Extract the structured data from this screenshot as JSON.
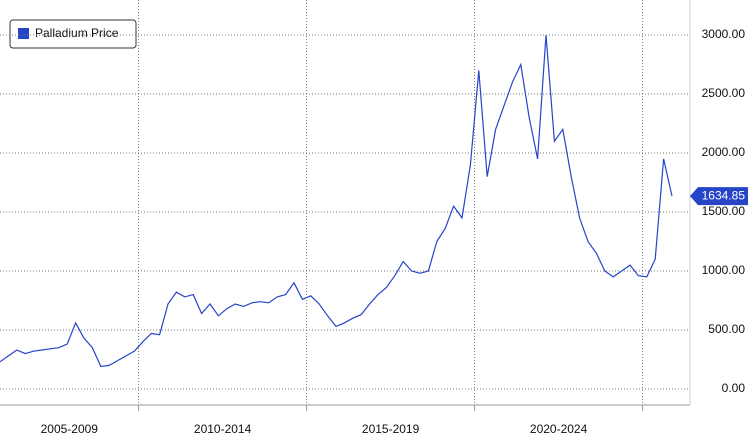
{
  "chart_data": {
    "type": "line",
    "categories": [
      null,
      null,
      null,
      null,
      null,
      null,
      "2005-2009",
      null,
      null,
      null,
      null,
      null,
      null,
      null,
      null,
      null,
      null,
      null,
      null,
      null,
      null,
      null,
      null,
      null,
      null,
      null,
      "2010-2014",
      null,
      null,
      null,
      null,
      null,
      null,
      null,
      null,
      null,
      null,
      null,
      null,
      null,
      null,
      null,
      null,
      null,
      null,
      null,
      "2015-2019",
      null,
      null,
      null,
      null,
      null,
      null,
      null,
      null,
      null,
      null,
      null,
      null,
      null,
      null,
      null,
      null,
      null,
      null,
      null,
      "2020-2024",
      null,
      null,
      null,
      null,
      null,
      null,
      null,
      null,
      null,
      null,
      null,
      null,
      null,
      null
    ],
    "series": [
      {
        "name": "Palladium Price",
        "color": "#2644c8",
        "values": [
          230,
          280,
          330,
          300,
          320,
          330,
          340,
          350,
          380,
          560,
          430,
          350,
          190,
          200,
          240,
          280,
          320,
          400,
          470,
          460,
          720,
          820,
          780,
          800,
          640,
          720,
          620,
          680,
          720,
          700,
          730,
          740,
          730,
          780,
          800,
          900,
          760,
          790,
          720,
          620,
          530,
          560,
          600,
          630,
          720,
          800,
          860,
          960,
          1080,
          1000,
          980,
          1000,
          1250,
          1360,
          1550,
          1450,
          1900,
          2700,
          1800,
          2200,
          2400,
          2600,
          2750,
          2300,
          1950,
          3000,
          2100,
          2200,
          1800,
          1450,
          1250,
          1150,
          1000,
          950,
          1000,
          1050,
          960,
          950,
          1100,
          1950,
          1634.85
        ]
      }
    ],
    "ylim": [
      -136,
      3297
    ],
    "yticks": [
      {
        "value": 0,
        "label": "0.00"
      },
      {
        "value": 500,
        "label": "500.00"
      },
      {
        "value": 1000,
        "label": "1000.00"
      },
      {
        "value": 1500,
        "label": "1500.00"
      },
      {
        "value": 2000,
        "label": "2000.00"
      },
      {
        "value": 2500,
        "label": "2500.00"
      },
      {
        "value": 3000,
        "label": "3000.00"
      }
    ],
    "grid": true
  }
}
